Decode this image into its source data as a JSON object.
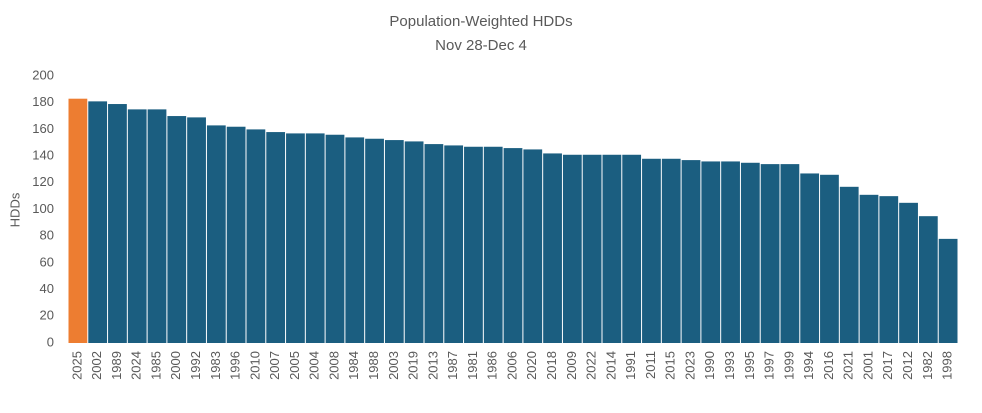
{
  "chart_data": {
    "type": "bar",
    "title": "Population-Weighted HDDs",
    "subtitle": "Nov 28-Dec 4",
    "y_label": "HDDs",
    "categories": [
      "2025",
      "2002",
      "1989",
      "2024",
      "1985",
      "2000",
      "1992",
      "1983",
      "1996",
      "2010",
      "2007",
      "2005",
      "2004",
      "2008",
      "1984",
      "1988",
      "2003",
      "2019",
      "2013",
      "1987",
      "1981",
      "1986",
      "2006",
      "2020",
      "2018",
      "2009",
      "2022",
      "2014",
      "1991",
      "2011",
      "2015",
      "2023",
      "1990",
      "1993",
      "1995",
      "1997",
      "1999",
      "1994",
      "2016",
      "2021",
      "2001",
      "2017",
      "2012",
      "1982",
      "1998"
    ],
    "values": [
      183,
      181,
      179,
      175,
      175,
      170,
      169,
      163,
      162,
      160,
      158,
      157,
      157,
      156,
      154,
      153,
      152,
      151,
      149,
      148,
      147,
      147,
      146,
      145,
      142,
      141,
      141,
      141,
      141,
      138,
      138,
      137,
      136,
      136,
      135,
      134,
      134,
      127,
      126,
      117,
      111,
      110,
      105,
      95,
      78
    ],
    "colors": [
      "#ed7d31",
      "#1b5e80",
      "#1b5e80",
      "#1b5e80",
      "#1b5e80",
      "#1b5e80",
      "#1b5e80",
      "#1b5e80",
      "#1b5e80",
      "#1b5e80",
      "#1b5e80",
      "#1b5e80",
      "#1b5e80",
      "#1b5e80",
      "#1b5e80",
      "#1b5e80",
      "#1b5e80",
      "#1b5e80",
      "#1b5e80",
      "#1b5e80",
      "#1b5e80",
      "#1b5e80",
      "#1b5e80",
      "#1b5e80",
      "#1b5e80",
      "#1b5e80",
      "#1b5e80",
      "#1b5e80",
      "#1b5e80",
      "#1b5e80",
      "#1b5e80",
      "#1b5e80",
      "#1b5e80",
      "#1b5e80",
      "#1b5e80",
      "#1b5e80",
      "#1b5e80",
      "#1b5e80",
      "#1b5e80",
      "#1b5e80",
      "#1b5e80",
      "#1b5e80",
      "#1b5e80",
      "#1b5e80",
      "#1b5e80"
    ],
    "ylim": [
      0,
      200
    ],
    "yticks": [
      0,
      20,
      40,
      60,
      80,
      100,
      120,
      140,
      160,
      180,
      200
    ],
    "grid": false
  }
}
